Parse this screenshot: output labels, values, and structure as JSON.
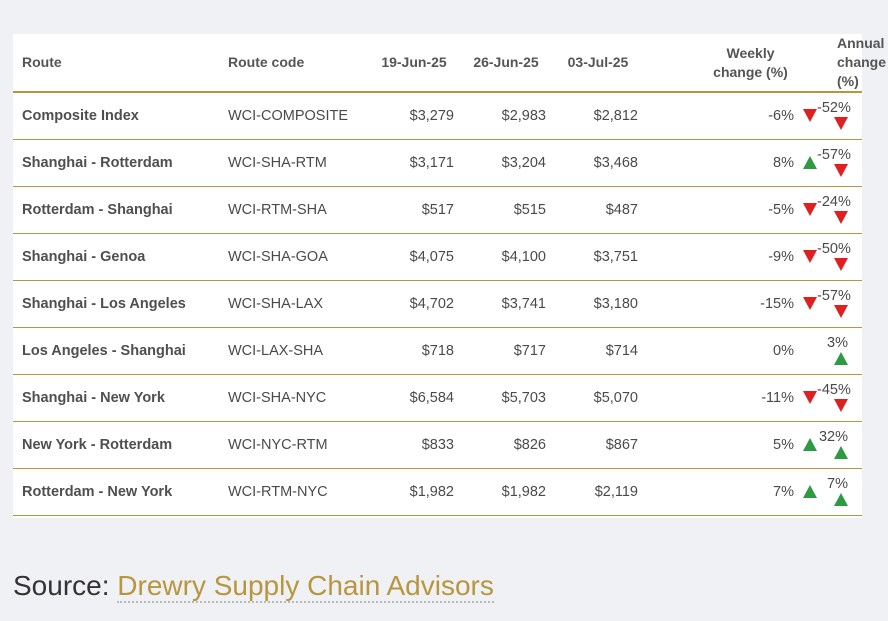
{
  "table": {
    "headers": {
      "route": "Route",
      "route_code": "Route code",
      "date1": "19-Jun-25",
      "date2": "26-Jun-25",
      "date3": "03-Jul-25",
      "weekly_line1": "Weekly",
      "weekly_line2": "change (%)",
      "annual_line1": "Annual",
      "annual_line2": "change (%)"
    },
    "rows": [
      {
        "route": "Composite Index",
        "code": "WCI-COMPOSITE",
        "d1": "$3,279",
        "d2": "$2,983",
        "d3": "$2,812",
        "weekly": "-6%",
        "weekly_dir": "down",
        "annual": "-52%",
        "annual_dir": "down"
      },
      {
        "route": "Shanghai - Rotterdam",
        "code": "WCI-SHA-RTM",
        "d1": "$3,171",
        "d2": "$3,204",
        "d3": "$3,468",
        "weekly": "8%",
        "weekly_dir": "up",
        "annual": "-57%",
        "annual_dir": "down"
      },
      {
        "route": "Rotterdam - Shanghai",
        "code": "WCI-RTM-SHA",
        "d1": "$517",
        "d2": "$515",
        "d3": "$487",
        "weekly": "-5%",
        "weekly_dir": "down",
        "annual": "-24%",
        "annual_dir": "down"
      },
      {
        "route": "Shanghai - Genoa",
        "code": "WCI-SHA-GOA",
        "d1": "$4,075",
        "d2": "$4,100",
        "d3": "$3,751",
        "weekly": "-9%",
        "weekly_dir": "down",
        "annual": "-50%",
        "annual_dir": "down"
      },
      {
        "route": "Shanghai - Los Angeles",
        "code": "WCI-SHA-LAX",
        "d1": "$4,702",
        "d2": "$3,741",
        "d3": "$3,180",
        "weekly": "-15%",
        "weekly_dir": "down",
        "annual": "-57%",
        "annual_dir": "down"
      },
      {
        "route": "Los Angeles - Shanghai",
        "code": "WCI-LAX-SHA",
        "d1": "$718",
        "d2": "$717",
        "d3": "$714",
        "weekly": "0%",
        "weekly_dir": "none",
        "annual": "3%",
        "annual_dir": "up"
      },
      {
        "route": "Shanghai - New York",
        "code": "WCI-SHA-NYC",
        "d1": "$6,584",
        "d2": "$5,703",
        "d3": "$5,070",
        "weekly": "-11%",
        "weekly_dir": "down",
        "annual": "-45%",
        "annual_dir": "down"
      },
      {
        "route": "New York - Rotterdam",
        "code": "WCI-NYC-RTM",
        "d1": "$833",
        "d2": "$826",
        "d3": "$867",
        "weekly": "5%",
        "weekly_dir": "up",
        "annual": "32%",
        "annual_dir": "up"
      },
      {
        "route": "Rotterdam - New York",
        "code": "WCI-RTM-NYC",
        "d1": "$1,982",
        "d2": "$1,982",
        "d3": "$2,119",
        "weekly": "7%",
        "weekly_dir": "up",
        "annual": "7%",
        "annual_dir": "up"
      }
    ]
  },
  "source": {
    "label": "Source:",
    "link_text": "Drewry Supply Chain Advisors"
  },
  "colors": {
    "accent_gold": "#b8963e",
    "down_red": "#e02020",
    "up_green": "#2e9a43"
  },
  "icons": {
    "down": "down-triangle-icon",
    "up": "up-triangle-icon"
  }
}
